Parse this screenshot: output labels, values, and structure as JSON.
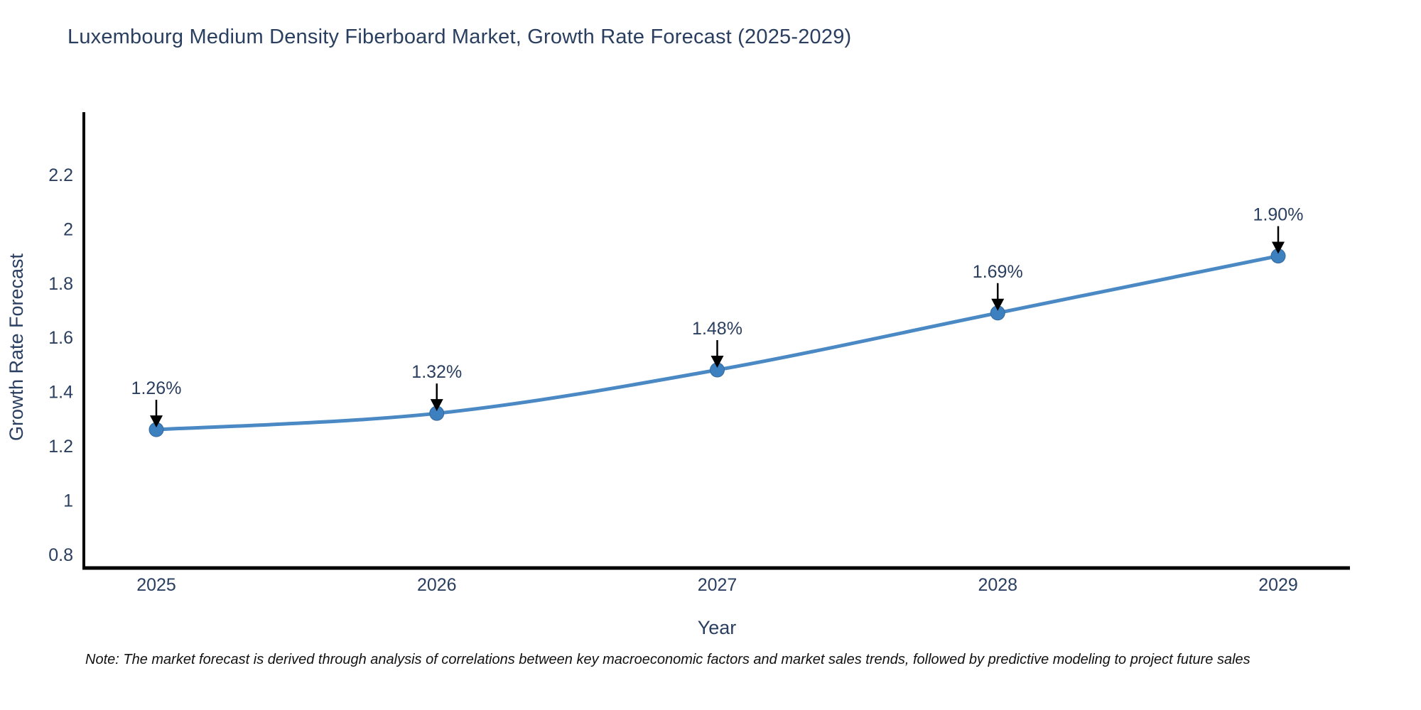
{
  "title": "Luxembourg Medium Density Fiberboard Market, Growth Rate Forecast (2025-2029)",
  "note": "Note: The market forecast is derived through analysis of correlations between key macroeconomic factors and market sales trends, followed by predictive modeling to project future sales",
  "chart_data": {
    "type": "line",
    "title": "Luxembourg Medium Density Fiberboard Market, Growth Rate Forecast (2025-2029)",
    "x": [
      2025,
      2026,
      2027,
      2028,
      2029
    ],
    "values": [
      1.26,
      1.32,
      1.48,
      1.69,
      1.9
    ],
    "point_labels": [
      "1.26%",
      "1.32%",
      "1.48%",
      "1.69%",
      "1.90%"
    ],
    "xlabel": "Year",
    "ylabel": "Growth Rate Forecast",
    "x_ticks": [
      "2025",
      "2026",
      "2027",
      "2028",
      "2029"
    ],
    "y_ticks": [
      0.8,
      1,
      1.2,
      1.4,
      1.6,
      1.8,
      2,
      2.2
    ],
    "ylim": [
      0.75,
      2.43
    ],
    "grid": false,
    "legend": "none",
    "line_color": "#4a89c4",
    "marker_color": "#3d80c0",
    "marker_edge_color": "#35699c",
    "axis_color": "#000000",
    "annotation_arrow_color": "#000000",
    "text_color": "#2a3f5f"
  }
}
